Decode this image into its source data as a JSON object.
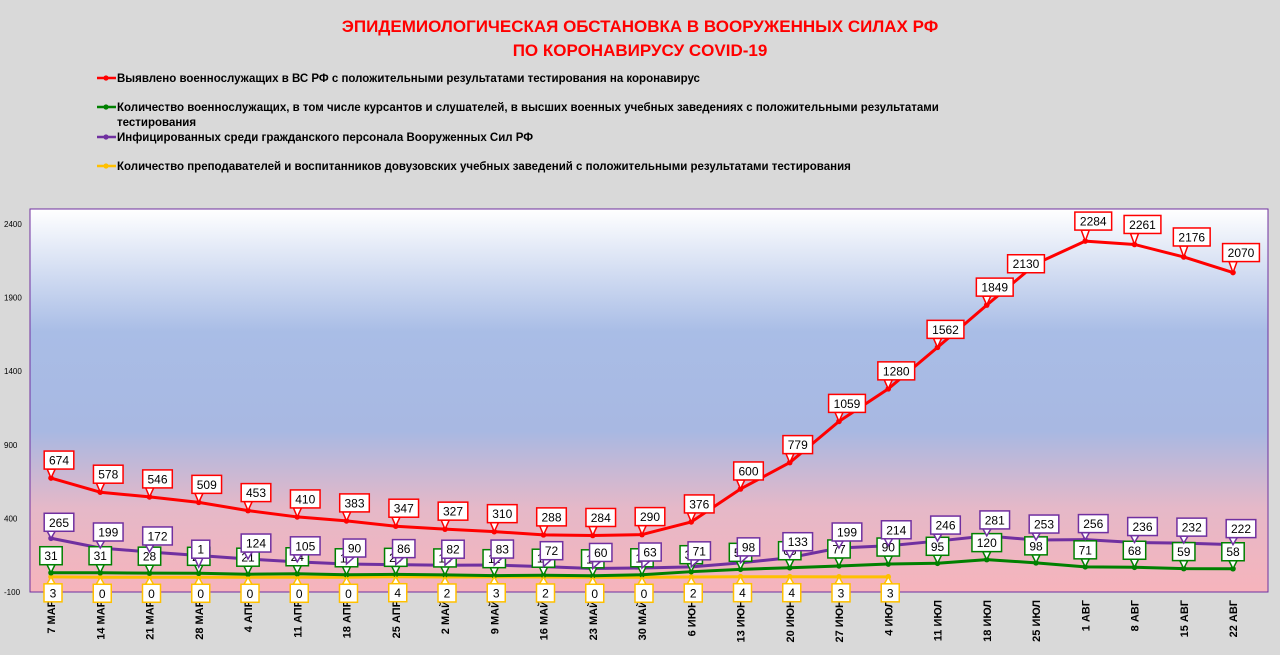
{
  "chart_data": {
    "type": "line",
    "title": [
      "ЭПИДЕМИОЛОГИЧЕСКАЯ ОБСТАНОВКА В ВООРУЖЕННЫХ СИЛАХ РФ",
      "ПО КОРОНАВИРУСУ COVID-19"
    ],
    "categories": [
      "7 МАР",
      "14 МАР",
      "21 МАР",
      "28 МАР",
      "4 АПР",
      "11 АПР",
      "18 АПР",
      "25 АПР",
      "2 МАЙ",
      "9 МАЙ",
      "16 МАЙ",
      "23 МАЙ",
      "30 МАЙ",
      "6 ИЮН",
      "13 ИЮН",
      "20 ИЮН",
      "27 ИЮН",
      "4 ИЮЛ",
      "11 ИЮЛ",
      "18 ИЮЛ",
      "25 ИЮЛ",
      "1 АВГ",
      "8 АВГ",
      "15 АВГ",
      "22 АВГ"
    ],
    "yticks": [
      -100,
      400,
      900,
      1400,
      1900,
      2400
    ],
    "ylim": [
      -100,
      2500
    ],
    "legend_position": "top",
    "series": [
      {
        "name": "Выявлено военнослужащих в ВС РФ с положительными результатами тестирования на коронавирус",
        "color": "#ff0000",
        "values": [
          674,
          578,
          546,
          509,
          453,
          410,
          383,
          347,
          327,
          310,
          288,
          284,
          290,
          376,
          600,
          779,
          1059,
          1280,
          1562,
          1849,
          2130,
          2284,
          2261,
          2176,
          2070
        ]
      },
      {
        "name": "Количество военнослужащих, в том числе курсантов и слушателей, в высших военных учебных заведениях с положительными результатами тестирования",
        "name_lines": [
          "Количество военнослужащих, в том числе курсантов и слушателей, в высших военных учебных заведениях с положительными результатами",
          "тестирования"
        ],
        "color": "#008000",
        "values": [
          31,
          31,
          28,
          27,
          21,
          24,
          17,
          20,
          16,
          11,
          14,
          10,
          17,
          38,
          54,
          65,
          77,
          90,
          95,
          120,
          98,
          71,
          68,
          59,
          58
        ]
      },
      {
        "name": "Инфицированных среди гражданского персонала Вооруженных Сил РФ",
        "color": "#7030a0",
        "values": [
          265,
          199,
          172,
          null,
          124,
          105,
          90,
          86,
          82,
          83,
          72,
          60,
          63,
          71,
          98,
          133,
          199,
          214,
          246,
          281,
          253,
          256,
          236,
          232,
          222
        ]
      },
      {
        "name": "Количество преподавателей и воспитанников довузовских учебных заведений с положительными результатами тестирования",
        "color": "#ffc000",
        "values": [
          3,
          0,
          0,
          0,
          0,
          0,
          0,
          4,
          2,
          3,
          2,
          0,
          0,
          2,
          4,
          4,
          3,
          3,
          null,
          null,
          null,
          null,
          null,
          null,
          null
        ]
      }
    ],
    "annotations": [
      {
        "text": "1",
        "category": "28 МАР",
        "series": 2
      }
    ]
  }
}
